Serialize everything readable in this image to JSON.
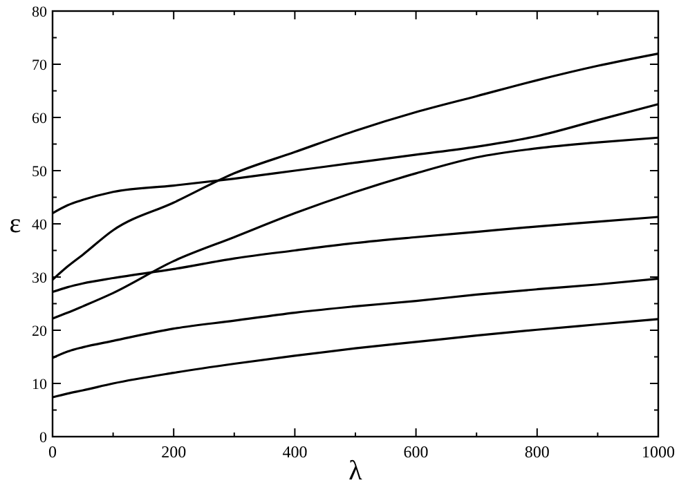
{
  "chart_data": {
    "type": "line",
    "xlabel": "λ",
    "ylabel": "ε",
    "xlim": [
      0,
      1000
    ],
    "ylim": [
      0,
      80
    ],
    "xticks": [
      0,
      {
        "value": 100,
        "label": null
      },
      200,
      {
        "value": 300,
        "label": null
      },
      400,
      {
        "value": 500,
        "label": null
      },
      600,
      {
        "value": 700,
        "label": null
      },
      800,
      {
        "value": 900,
        "label": null
      },
      1000
    ],
    "yticks": [
      0,
      {
        "value": 5,
        "label": null
      },
      10,
      {
        "value": 15,
        "label": null
      },
      20,
      {
        "value": 25,
        "label": null
      },
      30,
      {
        "value": 35,
        "label": null
      },
      40,
      {
        "value": 45,
        "label": null
      },
      50,
      {
        "value": 55,
        "label": null
      },
      60,
      {
        "value": 65,
        "label": null
      },
      70,
      {
        "value": 75,
        "label": null
      },
      80
    ],
    "x": [
      0,
      25,
      50,
      100,
      200,
      300,
      400,
      500,
      600,
      700,
      800,
      900,
      1000
    ],
    "grid": false,
    "marker": "none",
    "line_style": "solid",
    "series": [
      {
        "color": "#000000",
        "values": [
          42,
          43.5,
          44.5,
          46,
          47.2,
          48.5,
          50,
          51.5,
          53,
          54.5,
          56.5,
          59.5,
          62.5
        ]
      },
      {
        "color": "#000000",
        "values": [
          29.5,
          32,
          34.2,
          38.8,
          44,
          49.5,
          53.5,
          57.5,
          61,
          64,
          67,
          69.7,
          72
        ]
      },
      {
        "color": "#000000",
        "values": [
          22.2,
          23.3,
          24.5,
          27,
          33,
          37.5,
          42,
          46,
          49.5,
          52.5,
          54.2,
          55.3,
          56.2
        ]
      },
      {
        "color": "#000000",
        "values": [
          27.2,
          28.1,
          28.8,
          29.8,
          31.5,
          33.5,
          35,
          36.4,
          37.5,
          38.5,
          39.5,
          40.4,
          41.3
        ]
      },
      {
        "color": "#000000",
        "values": [
          14.8,
          16,
          16.8,
          18,
          20.3,
          21.8,
          23.3,
          24.5,
          25.5,
          26.7,
          27.7,
          28.6,
          29.7
        ]
      },
      {
        "color": "#000000",
        "values": [
          7.4,
          8.1,
          8.7,
          10,
          12,
          13.7,
          15.2,
          16.6,
          17.8,
          19,
          20.1,
          21.1,
          22.1
        ]
      }
    ]
  }
}
